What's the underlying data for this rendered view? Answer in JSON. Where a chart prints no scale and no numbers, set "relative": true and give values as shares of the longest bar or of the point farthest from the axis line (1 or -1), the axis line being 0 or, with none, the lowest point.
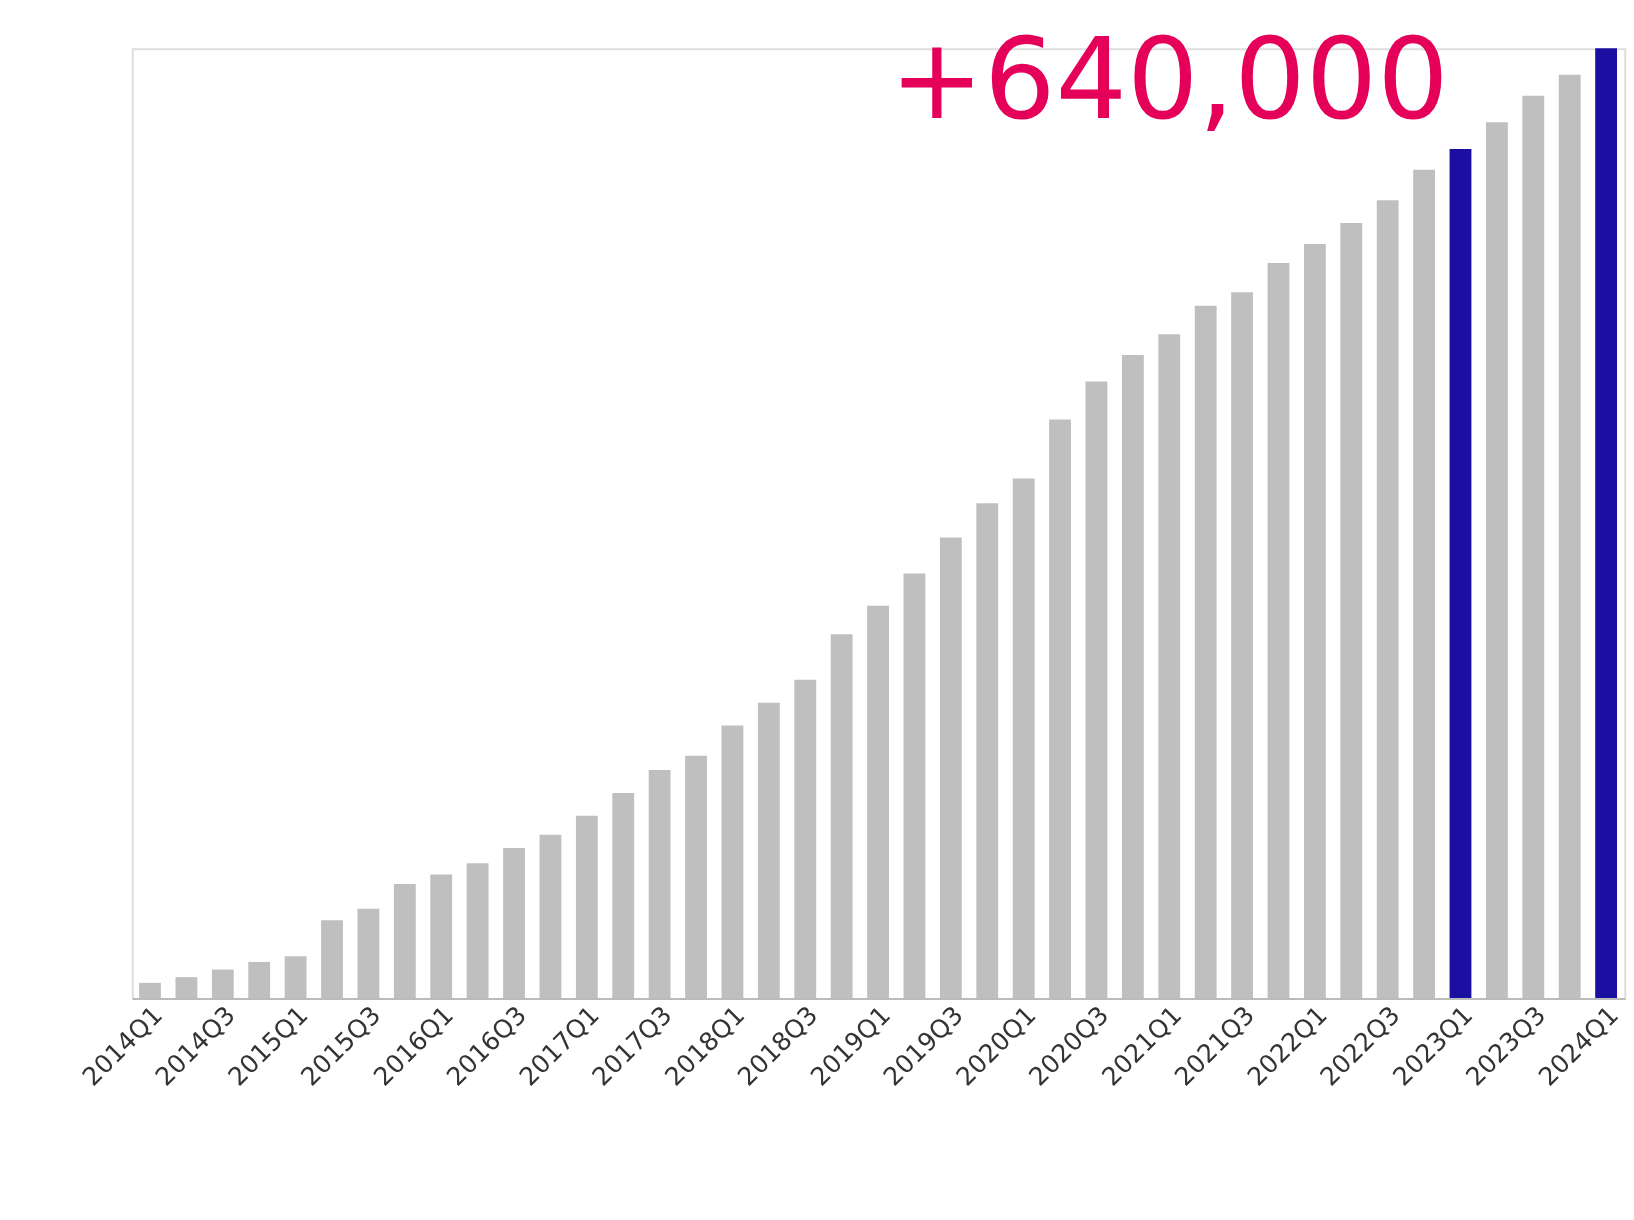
{
  "chart_data": {
    "type": "bar",
    "relative": true,
    "categories": [
      "2014Q1",
      null,
      "2014Q3",
      null,
      "2015Q1",
      null,
      "2015Q3",
      null,
      "2016Q1",
      null,
      "2016Q3",
      null,
      "2017Q1",
      null,
      "2017Q3",
      null,
      "2018Q1",
      null,
      "2018Q3",
      null,
      "2019Q1",
      null,
      "2019Q3",
      null,
      "2020Q1",
      null,
      "2020Q3",
      null,
      "2021Q1",
      null,
      "2021Q3",
      null,
      "2022Q1",
      null,
      "2022Q3",
      null,
      "2023Q1",
      null,
      "2023Q3",
      null,
      "2024Q1"
    ],
    "values": [
      0.016,
      0.022,
      0.03,
      0.038,
      0.044,
      0.082,
      0.094,
      0.12,
      0.13,
      0.142,
      0.158,
      0.172,
      0.192,
      0.216,
      0.24,
      0.255,
      0.287,
      0.311,
      0.335,
      0.383,
      0.413,
      0.447,
      0.485,
      0.521,
      0.547,
      0.609,
      0.649,
      0.677,
      0.699,
      0.729,
      0.743,
      0.774,
      0.794,
      0.816,
      0.84,
      0.872,
      0.894,
      0.922,
      0.95,
      0.972,
      1.0
    ],
    "colors": [
      "#bfbfbf",
      "#bfbfbf",
      "#bfbfbf",
      "#bfbfbf",
      "#bfbfbf",
      "#bfbfbf",
      "#bfbfbf",
      "#bfbfbf",
      "#bfbfbf",
      "#bfbfbf",
      "#bfbfbf",
      "#bfbfbf",
      "#bfbfbf",
      "#bfbfbf",
      "#bfbfbf",
      "#bfbfbf",
      "#bfbfbf",
      "#bfbfbf",
      "#bfbfbf",
      "#bfbfbf",
      "#bfbfbf",
      "#bfbfbf",
      "#bfbfbf",
      "#bfbfbf",
      "#bfbfbf",
      "#bfbfbf",
      "#bfbfbf",
      "#bfbfbf",
      "#bfbfbf",
      "#bfbfbf",
      "#bfbfbf",
      "#bfbfbf",
      "#bfbfbf",
      "#bfbfbf",
      "#bfbfbf",
      "#bfbfbf",
      "#1a0fa0",
      "#bfbfbf",
      "#bfbfbf",
      "#bfbfbf",
      "#1a0fa0"
    ],
    "annotations": [
      {
        "text": "+640,000",
        "x": "2023Q1",
        "y": 0.894
      }
    ],
    "grid": false
  }
}
